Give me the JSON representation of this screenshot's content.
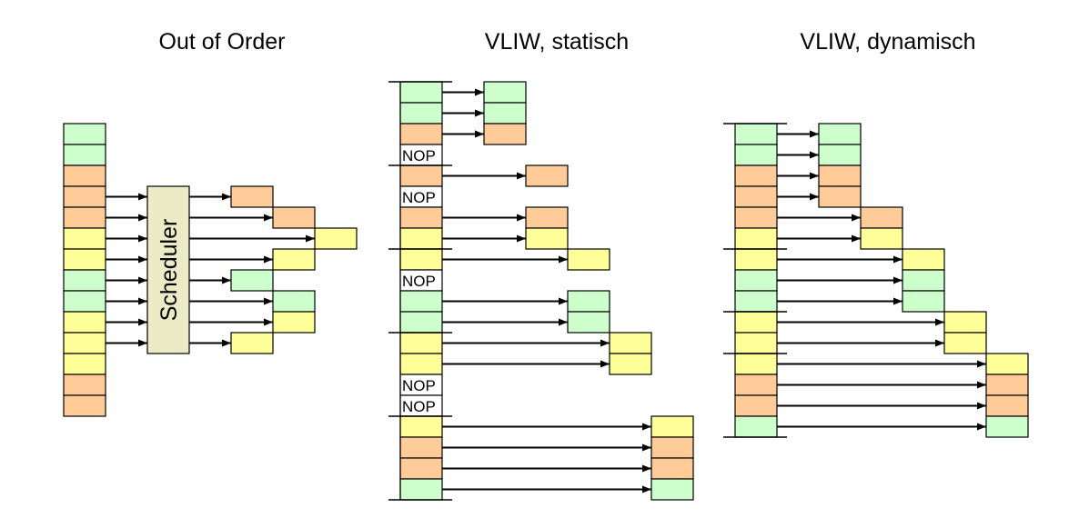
{
  "titles": {
    "ooo": "Out of Order",
    "static": "VLIW, statisch",
    "dynamic": "VLIW, dynamisch"
  },
  "scheduler_label": "Scheduler",
  "nop_label": "NOP",
  "colors": {
    "G": "#CCFFCC",
    "O": "#FFCC99",
    "Y": "#FFFF99",
    "N": "#FFFFFF",
    "scheduler": "#EBEBC6"
  },
  "panels": {
    "ooo": {
      "instructions": [
        "G",
        "G",
        "O",
        "O",
        "O",
        "Y",
        "Y",
        "G",
        "G",
        "Y",
        "Y",
        "Y",
        "O",
        "O"
      ],
      "scheduled": [
        {
          "row": 3,
          "cycle": 0
        },
        {
          "row": 4,
          "cycle": 1
        },
        {
          "row": 5,
          "cycle": 2
        },
        {
          "row": 6,
          "cycle": 1
        },
        {
          "row": 7,
          "cycle": 0
        },
        {
          "row": 8,
          "cycle": 1
        },
        {
          "row": 9,
          "cycle": 1
        },
        {
          "row": 10,
          "cycle": 0
        }
      ]
    },
    "static": {
      "bundle_size": 4,
      "instructions": [
        "G",
        "G",
        "O",
        "N",
        "O",
        "N",
        "O",
        "Y",
        "Y",
        "N",
        "G",
        "G",
        "Y",
        "Y",
        "N",
        "N",
        "Y",
        "O",
        "O",
        "G"
      ],
      "cycles": [
        0,
        0,
        0,
        null,
        1,
        null,
        1,
        1,
        2,
        null,
        2,
        2,
        3,
        3,
        null,
        null,
        4,
        4,
        4,
        4
      ]
    },
    "dynamic": {
      "instructions": [
        "G",
        "G",
        "O",
        "O",
        "O",
        "Y",
        "Y",
        "G",
        "G",
        "Y",
        "Y",
        "Y",
        "O",
        "O",
        "G"
      ],
      "group_starts": [
        0,
        6,
        9,
        11,
        15
      ],
      "cycles": [
        0,
        0,
        0,
        0,
        1,
        1,
        2,
        2,
        2,
        3,
        3,
        4,
        4,
        4,
        4
      ]
    }
  }
}
